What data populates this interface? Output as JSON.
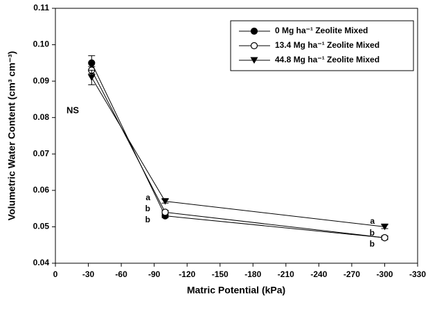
{
  "chart_data": {
    "type": "line",
    "x": [
      -33,
      -100,
      -300
    ],
    "xlim": [
      0,
      -330
    ],
    "xticks": [
      0,
      -30,
      -60,
      -90,
      -120,
      -150,
      -180,
      -210,
      -240,
      -270,
      -300,
      -330
    ],
    "ylim": [
      0.04,
      0.11
    ],
    "yticks": [
      0.04,
      0.05,
      0.06,
      0.07,
      0.08,
      0.09,
      {
        "value": 0.1,
        "label": "0.10"
      },
      0.11
    ],
    "x_label": "Matric Potential (kPa)",
    "y_label": "Volumetric Water Content (cm³ cm⁻³)",
    "series": [
      {
        "name": "0 Mg ha⁻¹ Zeolite Mixed",
        "color": "#000000",
        "marker": "circle-filled",
        "values": [
          0.095,
          0.053,
          0.047
        ],
        "errors": [
          0.002,
          0.0005,
          0.0005
        ]
      },
      {
        "name": "13.4 Mg ha⁻¹ Zeolite Mixed",
        "color": "#000000",
        "marker": "circle-open",
        "values": [
          0.093,
          0.054,
          0.047
        ],
        "errors": [
          0.001,
          0.0005,
          0.0005
        ]
      },
      {
        "name": "44.8 Mg ha⁻¹ Zeolite Mixed",
        "color": "#000000",
        "marker": "triangle-down",
        "values": [
          0.091,
          0.057,
          0.05
        ],
        "errors": [
          0.002,
          0.0005,
          0.0005
        ]
      }
    ],
    "annotations": [
      "NS",
      "a",
      "b",
      "b",
      "a",
      "b",
      "b"
    ]
  }
}
